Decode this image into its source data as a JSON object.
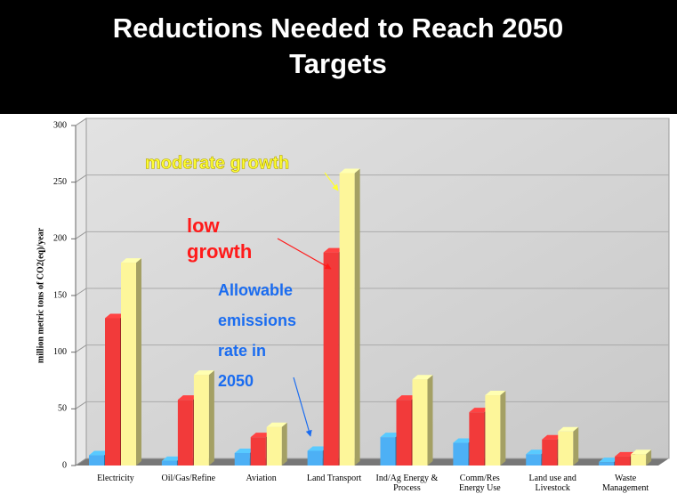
{
  "chart_data": {
    "type": "bar3d",
    "title": "Reductions Needed to Reach 2050 Targets",
    "y_label": "million metric tons of CO2(eq)/year",
    "categories": [
      "Electricity",
      "Oil/Gas/Refine",
      "Aviation",
      "Land Transport",
      "Ind/Ag Energy & Process",
      "Comm/Res Energy Use",
      "Land use and Livestock",
      "Waste Management"
    ],
    "series": [
      {
        "color": "#4db0f5",
        "values": [
          9,
          4,
          11,
          13,
          25,
          20,
          10,
          3
        ]
      },
      {
        "color": "#f23a3a",
        "values": [
          130,
          58,
          25,
          188,
          58,
          47,
          23,
          8
        ]
      },
      {
        "color": "#fdf69a",
        "values": [
          179,
          80,
          34,
          258,
          76,
          62,
          30,
          10
        ]
      }
    ],
    "ylim": [
      0,
      300
    ],
    "yticks": [
      0,
      50,
      100,
      150,
      200,
      250,
      300
    ],
    "grid": true,
    "annotations": [
      {
        "lines": [
          "moderate growth"
        ],
        "color": "#ffff33"
      },
      {
        "lines": [
          "low",
          "growth"
        ],
        "color": "#ff1a1a"
      },
      {
        "lines": [
          "Allowable",
          "emissions",
          "rate in",
          "2050"
        ],
        "color": "#1a6cf0"
      }
    ]
  }
}
